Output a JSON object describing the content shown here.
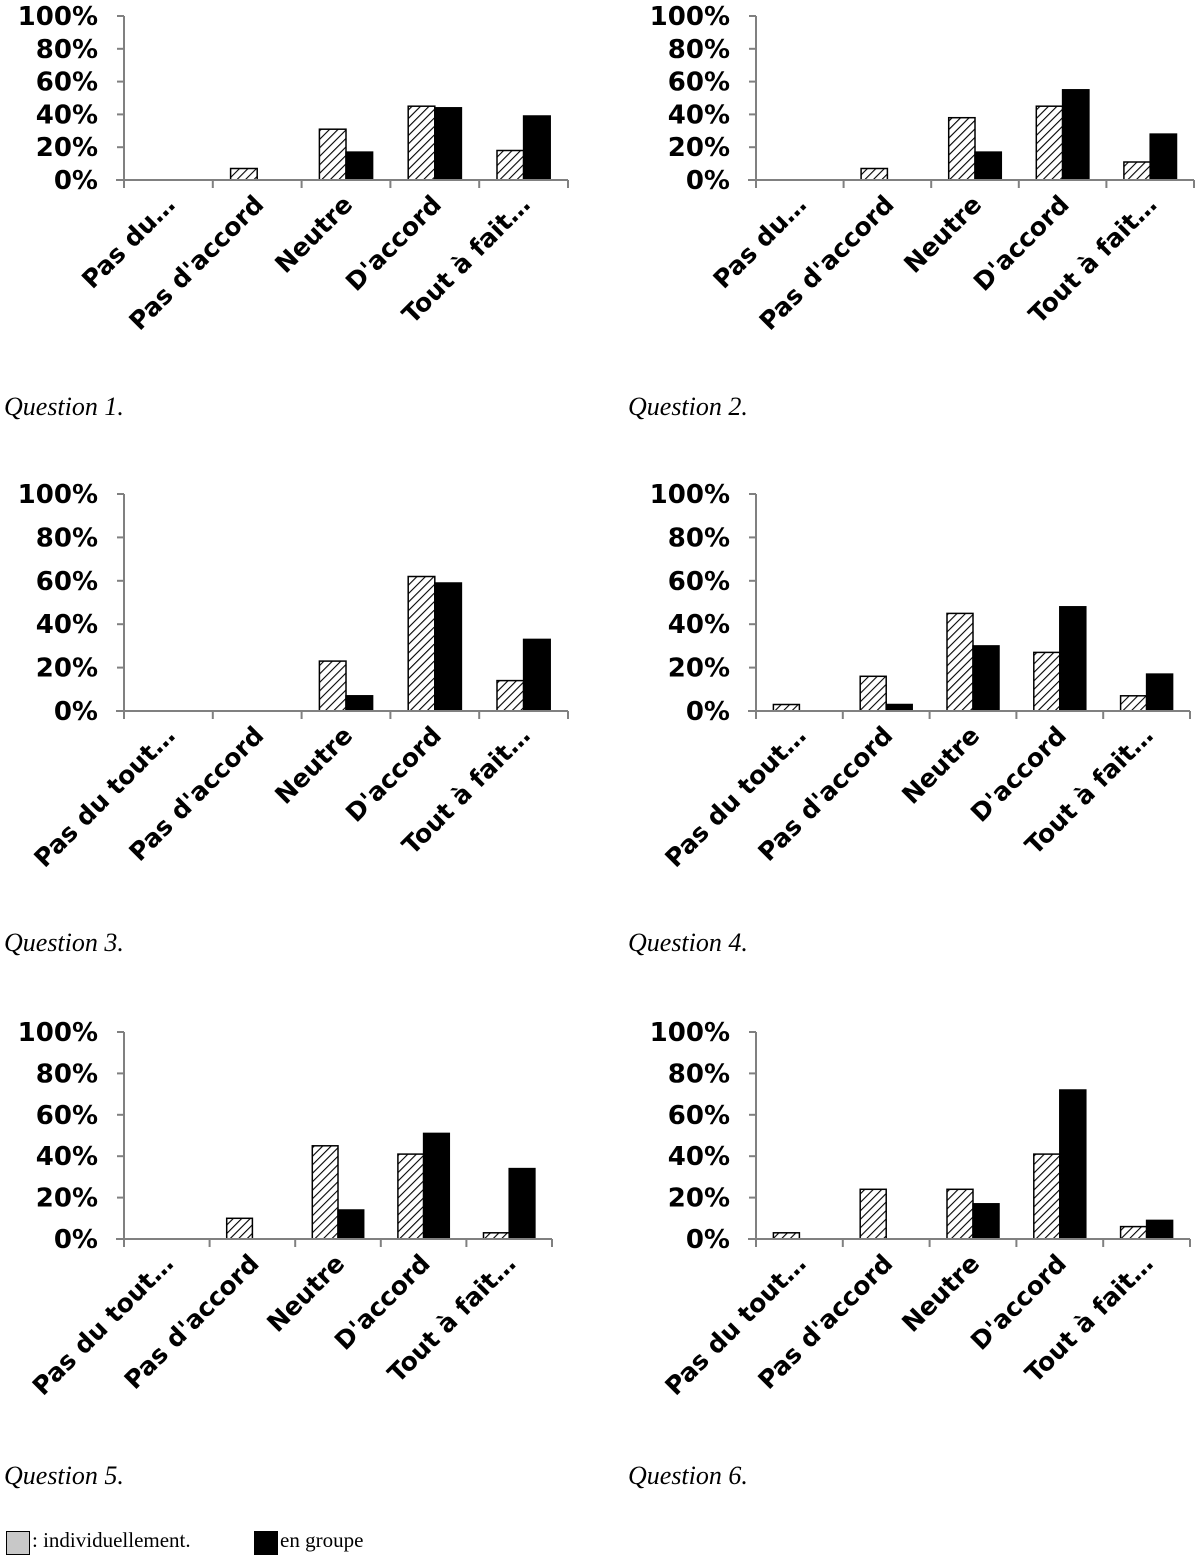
{
  "legend": {
    "individual": {
      "label": ": individuellement.",
      "color": "#c8c8c8"
    },
    "group": {
      "label": "en groupe",
      "color": "#000000"
    }
  },
  "chart_data": [
    {
      "type": "bar",
      "caption": "Question 1",
      "categories": [
        "Pas du…",
        "Pas d'accord",
        "Neutre",
        "D'accord",
        "Tout à fait…"
      ],
      "yticks": [
        "0%",
        "20%",
        "40%",
        "60%",
        "80%",
        "100%"
      ],
      "ylim": [
        0,
        100
      ],
      "series": [
        {
          "key": "individual",
          "values": [
            0,
            7,
            31,
            45,
            18
          ]
        },
        {
          "key": "group",
          "values": [
            0,
            0,
            17,
            44,
            39
          ]
        }
      ]
    },
    {
      "type": "bar",
      "caption": "Question 2",
      "categories": [
        "Pas du…",
        "Pas d'accord",
        "Neutre",
        "D'accord",
        "Tout à fait…"
      ],
      "yticks": [
        "0%",
        "20%",
        "40%",
        "60%",
        "80%",
        "100%"
      ],
      "ylim": [
        0,
        100
      ],
      "series": [
        {
          "key": "individual",
          "values": [
            0,
            7,
            38,
            45,
            11
          ]
        },
        {
          "key": "group",
          "values": [
            0,
            0,
            17,
            55,
            28
          ]
        }
      ]
    },
    {
      "type": "bar",
      "caption": "Question 3",
      "categories": [
        "Pas du tout…",
        "Pas d'accord",
        "Neutre",
        "D'accord",
        "Tout à fait…"
      ],
      "yticks": [
        "0%",
        "20%",
        "40%",
        "60%",
        "80%",
        "100%"
      ],
      "ylim": [
        0,
        100
      ],
      "series": [
        {
          "key": "individual",
          "values": [
            0,
            0,
            23,
            62,
            14
          ]
        },
        {
          "key": "group",
          "values": [
            0,
            0,
            7,
            59,
            33
          ]
        }
      ]
    },
    {
      "type": "bar",
      "caption": "Question 4",
      "categories": [
        "Pas du tout…",
        "Pas d'accord",
        "Neutre",
        "D'accord",
        "Tout à fait…"
      ],
      "yticks": [
        "0%",
        "20%",
        "40%",
        "60%",
        "80%",
        "100%"
      ],
      "ylim": [
        0,
        100
      ],
      "series": [
        {
          "key": "individual",
          "values": [
            3,
            16,
            45,
            27,
            7
          ]
        },
        {
          "key": "group",
          "values": [
            0,
            3,
            30,
            48,
            17
          ]
        }
      ]
    },
    {
      "type": "bar",
      "caption": "Question 5",
      "categories": [
        "Pas du tout…",
        "Pas d'accord",
        "Neutre",
        "D'accord",
        "Tout à fait…"
      ],
      "yticks": [
        "0%",
        "20%",
        "40%",
        "60%",
        "80%",
        "100%"
      ],
      "ylim": [
        0,
        100
      ],
      "series": [
        {
          "key": "individual",
          "values": [
            0,
            10,
            45,
            41,
            3
          ]
        },
        {
          "key": "group",
          "values": [
            0,
            0,
            14,
            51,
            34
          ]
        }
      ]
    },
    {
      "type": "bar",
      "caption": "Question 6",
      "categories": [
        "Pas du tout…",
        "Pas d'accord",
        "Neutre",
        "D'accord",
        "Tout à fait…"
      ],
      "yticks": [
        "0%",
        "20%",
        "40%",
        "60%",
        "80%",
        "100%"
      ],
      "ylim": [
        0,
        100
      ],
      "series": [
        {
          "key": "individual",
          "values": [
            3,
            24,
            24,
            41,
            6
          ]
        },
        {
          "key": "group",
          "values": [
            0,
            0,
            17,
            72,
            9
          ]
        }
      ]
    }
  ]
}
